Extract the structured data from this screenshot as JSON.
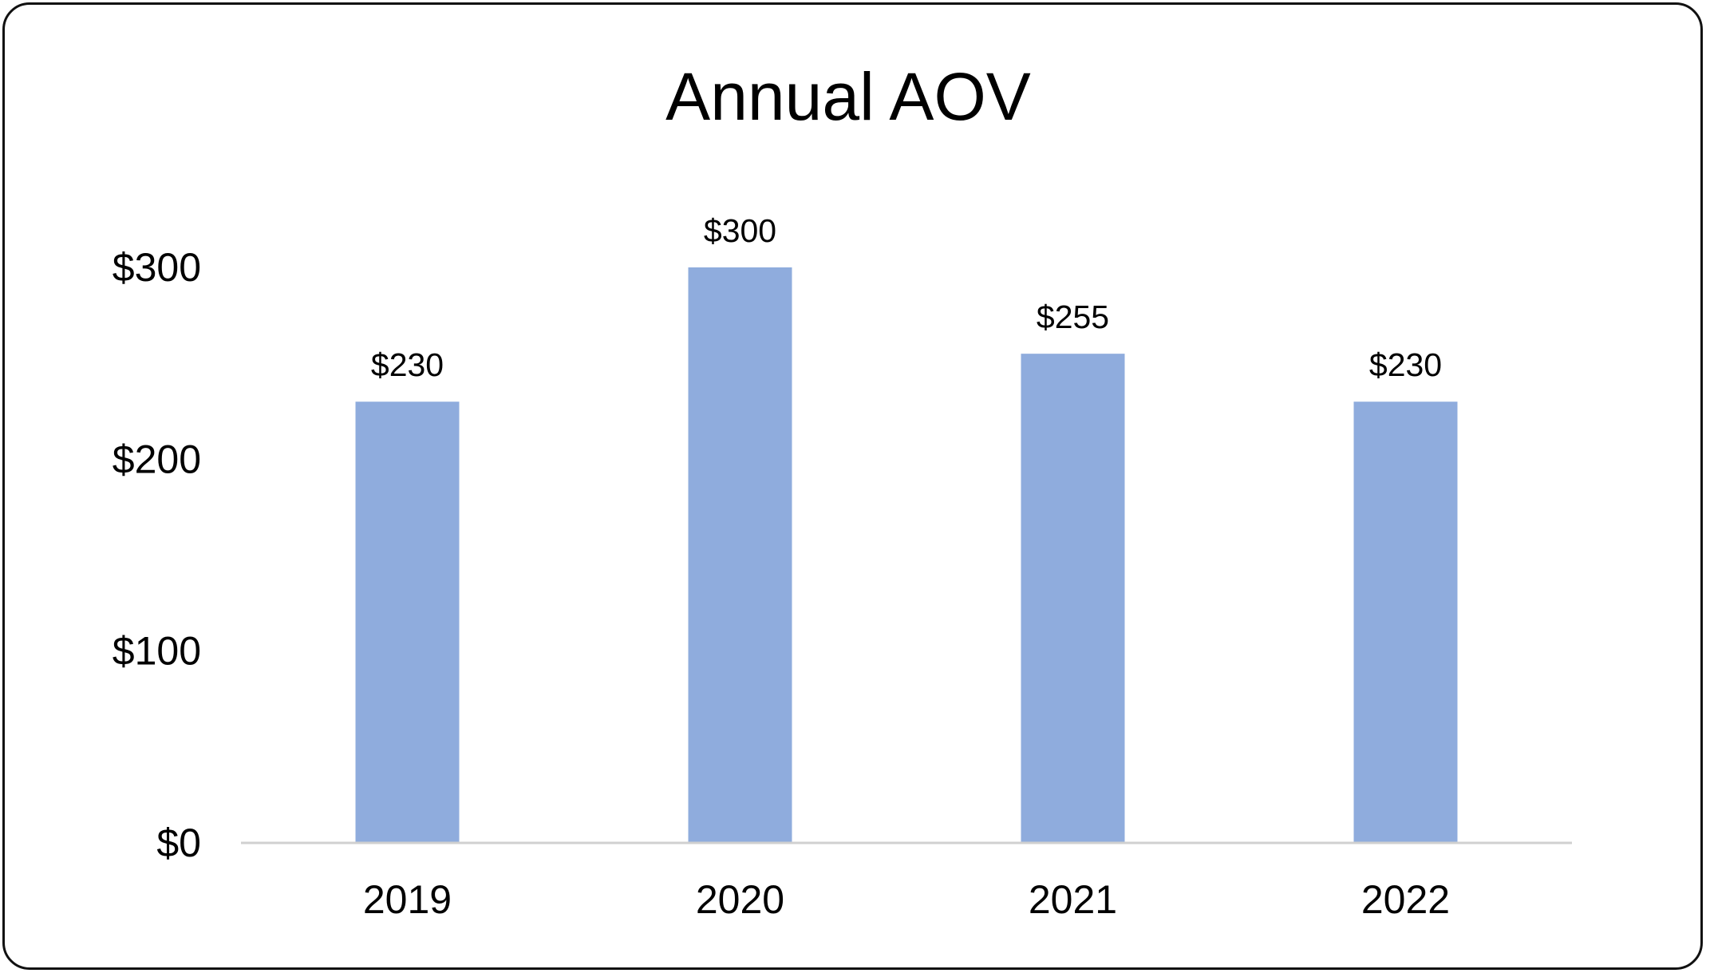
{
  "chart_data": {
    "type": "bar",
    "title": "Annual AOV",
    "xlabel": "",
    "ylabel": "",
    "categories": [
      "2019",
      "2020",
      "2021",
      "2022"
    ],
    "values": [
      230,
      300,
      255,
      230
    ],
    "data_labels": [
      "$230",
      "$300",
      "$255",
      "$230"
    ],
    "ylim": [
      0,
      300
    ],
    "yticks": [
      0,
      100,
      200,
      300
    ],
    "ytick_labels": [
      "$0",
      "$100",
      "$200",
      "$300"
    ],
    "grid": false,
    "legend": "none",
    "colors": {
      "bar": "#8FACDD",
      "axis": "#D0D0D0",
      "text": "#000000",
      "border": "#111111"
    }
  }
}
